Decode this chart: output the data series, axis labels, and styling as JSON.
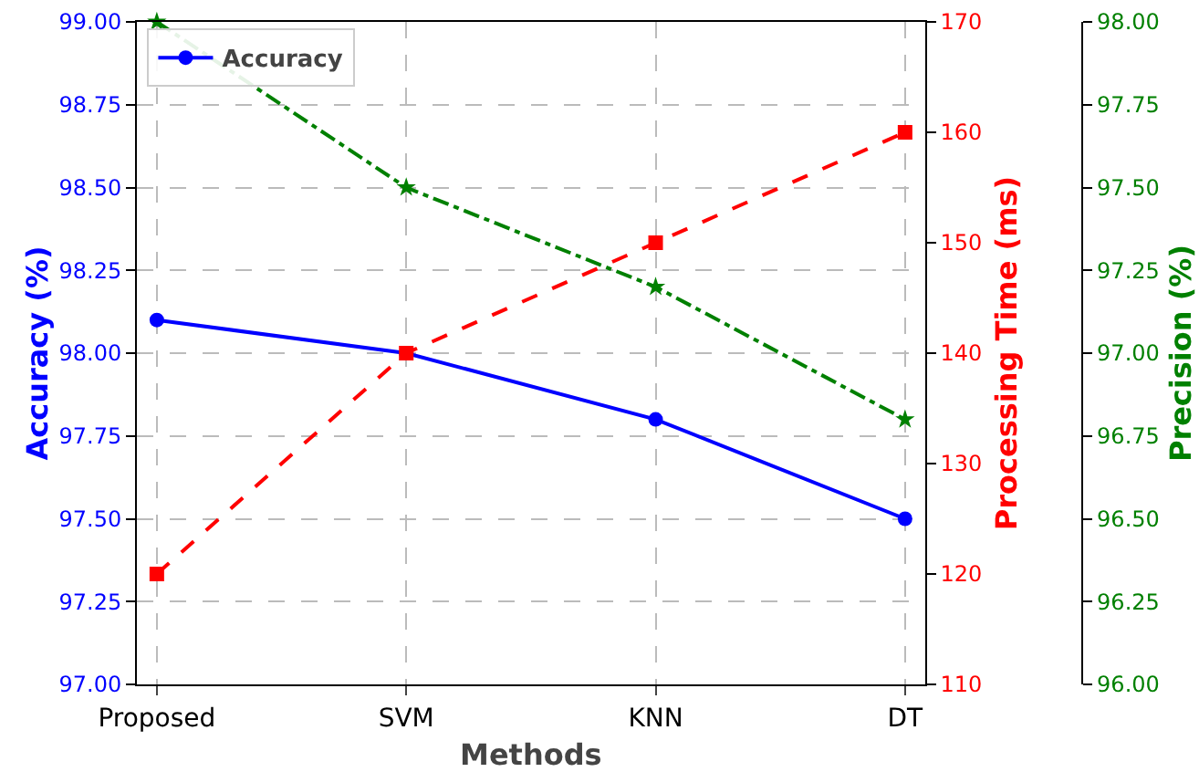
{
  "chart_data": {
    "type": "line",
    "xlabel": "Methods",
    "ylabel": "Accuracy (%)",
    "y2label": "Processing Time (ms)",
    "y3label": "Precision (%)",
    "categories": [
      "Proposed",
      "SVM",
      "KNN",
      "DT"
    ],
    "series": [
      {
        "name": "Accuracy",
        "color": "#0000ff",
        "values": [
          98.1,
          98.0,
          97.8,
          97.5
        ],
        "marker": "circle",
        "line_style": "solid"
      },
      {
        "color": "#ff0000",
        "values": [
          120,
          140,
          150,
          160
        ],
        "axis": "y2",
        "marker": "square",
        "line_style": "dashed"
      },
      {
        "color": "#008000",
        "values": [
          98.0,
          97.5,
          97.2,
          96.8
        ],
        "axis": "y3",
        "marker": "star",
        "line_style": "dashdot"
      }
    ],
    "ylim": [
      97,
      99
    ],
    "yticks": [
      {
        "value": 97,
        "label": "97.00"
      },
      {
        "value": 97.25,
        "label": "97.25"
      },
      {
        "value": 97.5,
        "label": "97.50"
      },
      {
        "value": 97.75,
        "label": "97.75"
      },
      {
        "value": 98,
        "label": "98.00"
      },
      {
        "value": 98.25,
        "label": "98.25"
      },
      {
        "value": 98.5,
        "label": "98.50"
      },
      {
        "value": 98.75,
        "label": "98.75"
      },
      {
        "value": 99,
        "label": "99.00"
      }
    ],
    "y2lim": [
      110,
      170
    ],
    "y2ticks": [
      110,
      120,
      130,
      140,
      150,
      160,
      170
    ],
    "y3lim": [
      96,
      98
    ],
    "y3ticks": [
      {
        "value": 96,
        "label": "96.00"
      },
      {
        "value": 96.25,
        "label": "96.25"
      },
      {
        "value": 96.5,
        "label": "96.50"
      },
      {
        "value": 96.75,
        "label": "96.75"
      },
      {
        "value": 97,
        "label": "97.00"
      },
      {
        "value": 97.25,
        "label": "97.25"
      },
      {
        "value": 97.5,
        "label": "97.50"
      },
      {
        "value": 97.75,
        "label": "97.75"
      },
      {
        "value": 98,
        "label": "98.00"
      }
    ],
    "grid": true,
    "legend": "top left"
  }
}
